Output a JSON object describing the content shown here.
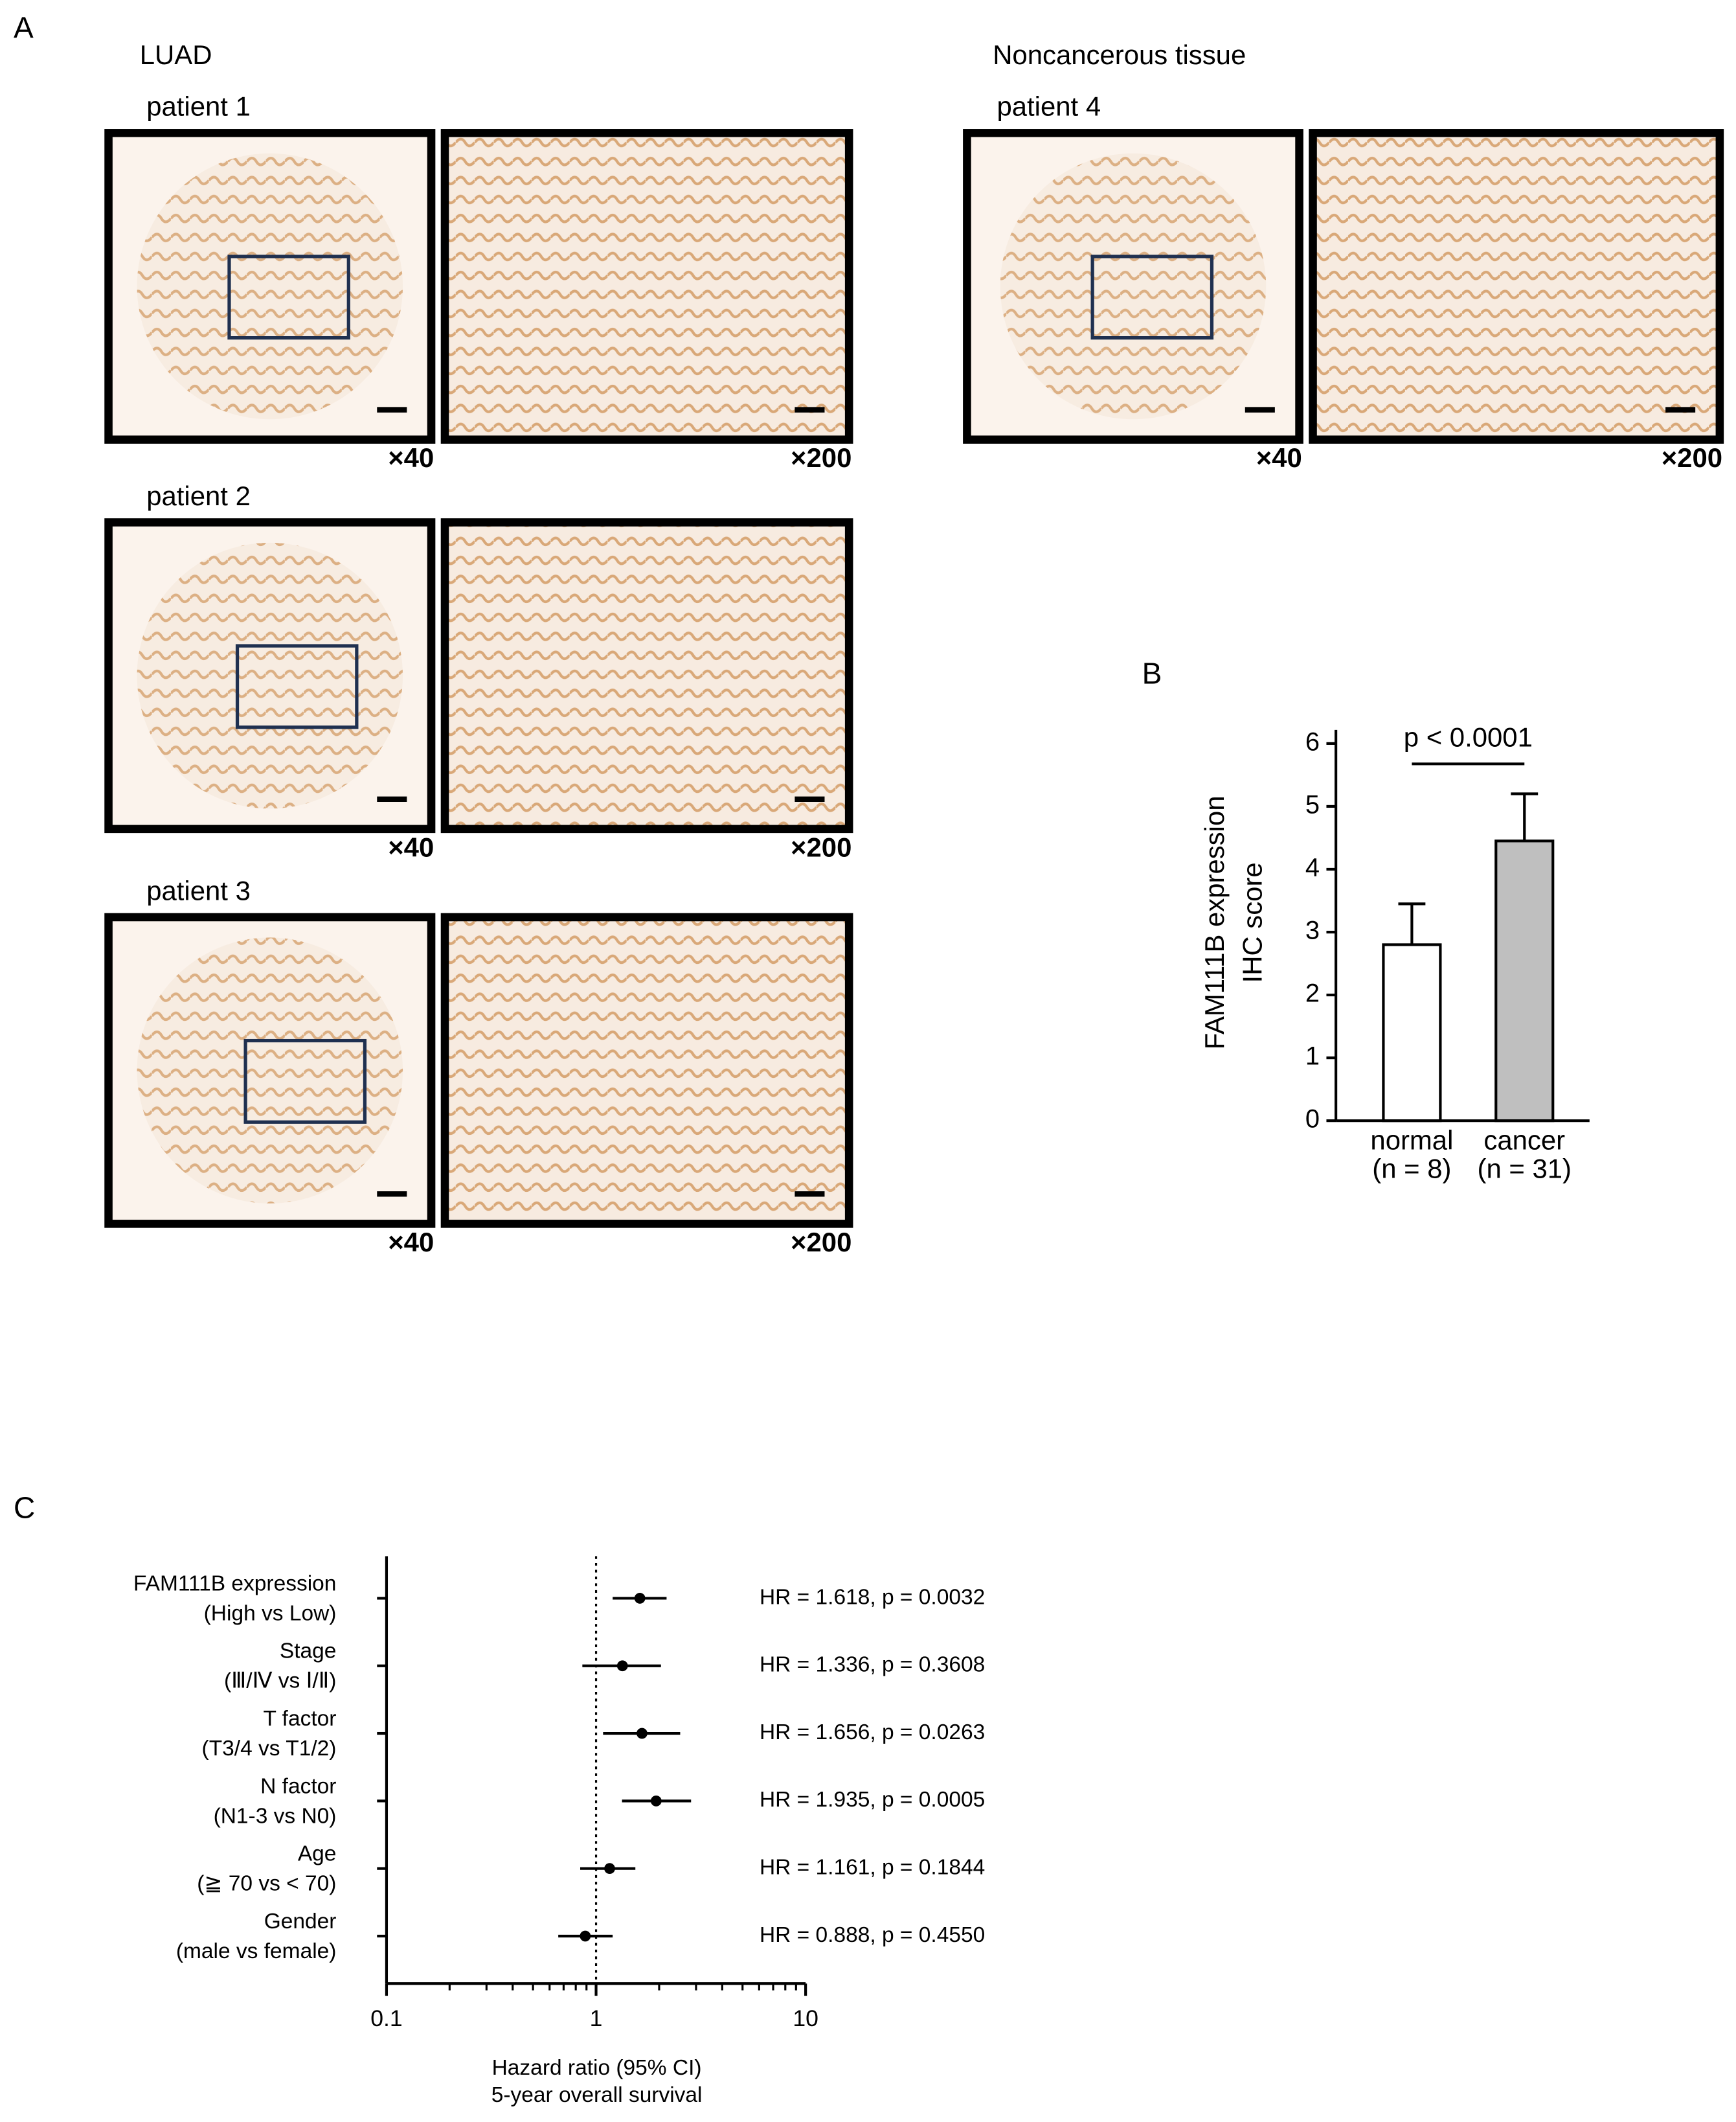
{
  "panel_labels": [
    "A",
    "B",
    "C"
  ],
  "panel_a": {
    "groups": [
      {
        "title": "LUAD",
        "patients": [
          {
            "label": "patient 1",
            "magnifications": [
              "×40",
              "×200"
            ]
          },
          {
            "label": "patient 2",
            "magnifications": [
              "×40",
              "×200"
            ]
          },
          {
            "label": "patient 3",
            "magnifications": [
              "×40",
              "×200"
            ]
          }
        ]
      },
      {
        "title": "Noncancerous tissue",
        "patients": [
          {
            "label": "patient 4",
            "magnifications": [
              "×40",
              "×200"
            ]
          }
        ]
      }
    ]
  },
  "chart_data": [
    {
      "type": "bar",
      "ylabel": [
        "FAM111B expression",
        "IHC score"
      ],
      "categories": [
        "normal",
        "cancer"
      ],
      "category_sublabels": [
        "(n = 8)",
        "(n = 31)"
      ],
      "values": [
        2.8,
        4.45
      ],
      "errors": [
        0.65,
        0.75
      ],
      "colors": [
        "#ffffff",
        "#bfbfbf"
      ],
      "ylim": [
        0,
        6
      ],
      "yticks": [
        0,
        1,
        2,
        3,
        4,
        5,
        6
      ],
      "annotation": "p < 0.0001"
    },
    {
      "type": "forest",
      "categories": [
        [
          "FAM111B expression",
          "(High vs Low)"
        ],
        [
          "Stage",
          "(Ⅲ/Ⅳ vs Ⅰ/Ⅱ)"
        ],
        [
          "T factor",
          "(T3/4 vs T1/2)"
        ],
        [
          "N factor",
          "(N1-3 vs N0)"
        ],
        [
          "Age",
          "(≧ 70 vs < 70)"
        ],
        [
          "Gender",
          "(male vs female)"
        ]
      ],
      "values": [
        1.618,
        1.336,
        1.656,
        1.935,
        1.161,
        0.888
      ],
      "value_labels": [
        "HR = 1.618, p = 0.0032",
        "HR = 1.336, p = 0.3608",
        "HR = 1.656, p = 0.0263",
        "HR = 1.935, p = 0.0005",
        "HR = 1.161, p = 0.1844",
        "HR = 0.888, p = 0.4550"
      ],
      "ci_low": [
        1.2,
        0.86,
        1.08,
        1.33,
        0.84,
        0.66
      ],
      "ci_high": [
        2.17,
        2.04,
        2.52,
        2.84,
        1.54,
        1.2
      ],
      "xlim": [
        0.1,
        10
      ],
      "xticks": [
        0.1,
        1,
        10
      ],
      "xminorticks": [
        0.2,
        0.3,
        0.4,
        0.5,
        0.6,
        0.7,
        0.8,
        0.9,
        2,
        3,
        4,
        5,
        6,
        7,
        8,
        9
      ],
      "log_x": true,
      "reference_line": 1,
      "xlabel": [
        "Hazard ratio (95% CI)",
        "5-year overall survival"
      ]
    }
  ]
}
